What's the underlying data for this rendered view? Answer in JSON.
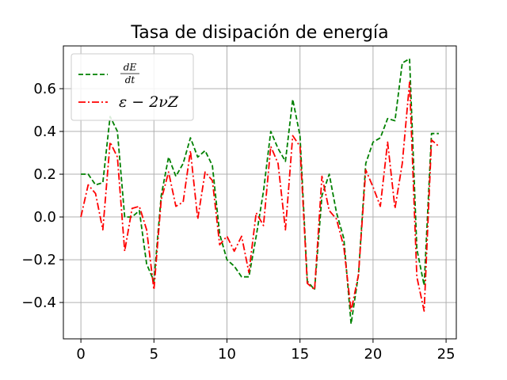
{
  "chart_data": {
    "type": "line",
    "title": "Tasa de disipación de energía",
    "xlabel": "",
    "ylabel": "",
    "xlim": [
      -1.2,
      25.7
    ],
    "ylim": [
      -0.57,
      0.8
    ],
    "xticks": [
      0,
      5,
      10,
      15,
      20,
      25
    ],
    "yticks": [
      -0.4,
      -0.2,
      0.0,
      0.2,
      0.4,
      0.6
    ],
    "xtick_labels": [
      "0",
      "5",
      "10",
      "15",
      "20",
      "25"
    ],
    "ytick_labels": [
      "−0.4",
      "−0.2",
      "0.0",
      "0.2",
      "0.4",
      "0.6"
    ],
    "grid": true,
    "legend_position": "top-left",
    "series": [
      {
        "name": "dE/dt",
        "legend_num": "dE",
        "legend_den": "dt",
        "color": "#008000",
        "dash": "dashed",
        "x": [
          0,
          0.5,
          1,
          1.5,
          2,
          2.5,
          3,
          3.5,
          4,
          4.5,
          5,
          5.5,
          6,
          6.5,
          7,
          7.5,
          8,
          8.5,
          9,
          9.5,
          10,
          10.5,
          11,
          11.5,
          12,
          12.5,
          13,
          13.5,
          14,
          14.5,
          15,
          15.5,
          16,
          16.5,
          17,
          17.5,
          18,
          18.5,
          19,
          19.5,
          20,
          20.5,
          21,
          21.5,
          22,
          22.5,
          23,
          23.5,
          24,
          24.5
        ],
        "y": [
          0.2,
          0.2,
          0.15,
          0.16,
          0.47,
          0.4,
          0.0,
          0.0,
          0.03,
          -0.22,
          -0.3,
          0.1,
          0.28,
          0.19,
          0.25,
          0.37,
          0.28,
          0.31,
          0.24,
          -0.08,
          -0.2,
          -0.23,
          -0.28,
          -0.28,
          -0.09,
          0.12,
          0.4,
          0.32,
          0.26,
          0.55,
          0.38,
          -0.3,
          -0.34,
          0.1,
          0.2,
          0.02,
          -0.1,
          -0.5,
          -0.27,
          0.25,
          0.35,
          0.37,
          0.46,
          0.45,
          0.72,
          0.74,
          -0.15,
          -0.32,
          0.39,
          0.39
        ]
      },
      {
        "name": "ε − 2νZ",
        "legend_label": "ε − 2νZ",
        "color": "#ff0000",
        "dash": "dashdot",
        "x": [
          0,
          0.5,
          1,
          1.5,
          2,
          2.5,
          3,
          3.5,
          4,
          4.5,
          5,
          5.5,
          6,
          6.5,
          7,
          7.5,
          8,
          8.5,
          9,
          9.5,
          10,
          10.5,
          11,
          11.5,
          12,
          12.5,
          13,
          13.5,
          14,
          14.5,
          15,
          15.5,
          16,
          16.5,
          17,
          17.5,
          18,
          18.5,
          19,
          19.5,
          20,
          20.5,
          21,
          21.5,
          22,
          22.5,
          23,
          23.5,
          24,
          24.5
        ],
        "y": [
          0.0,
          0.15,
          0.11,
          -0.06,
          0.35,
          0.28,
          -0.16,
          0.04,
          0.05,
          -0.06,
          -0.34,
          0.08,
          0.21,
          0.05,
          0.07,
          0.31,
          -0.01,
          0.21,
          0.17,
          -0.13,
          -0.09,
          -0.16,
          -0.09,
          -0.26,
          0.02,
          -0.04,
          0.33,
          0.25,
          -0.06,
          0.38,
          0.33,
          -0.31,
          -0.34,
          0.19,
          0.03,
          -0.01,
          -0.14,
          -0.44,
          -0.27,
          0.22,
          0.14,
          0.05,
          0.35,
          0.04,
          0.25,
          0.63,
          -0.28,
          -0.44,
          0.36,
          0.33
        ]
      }
    ]
  }
}
